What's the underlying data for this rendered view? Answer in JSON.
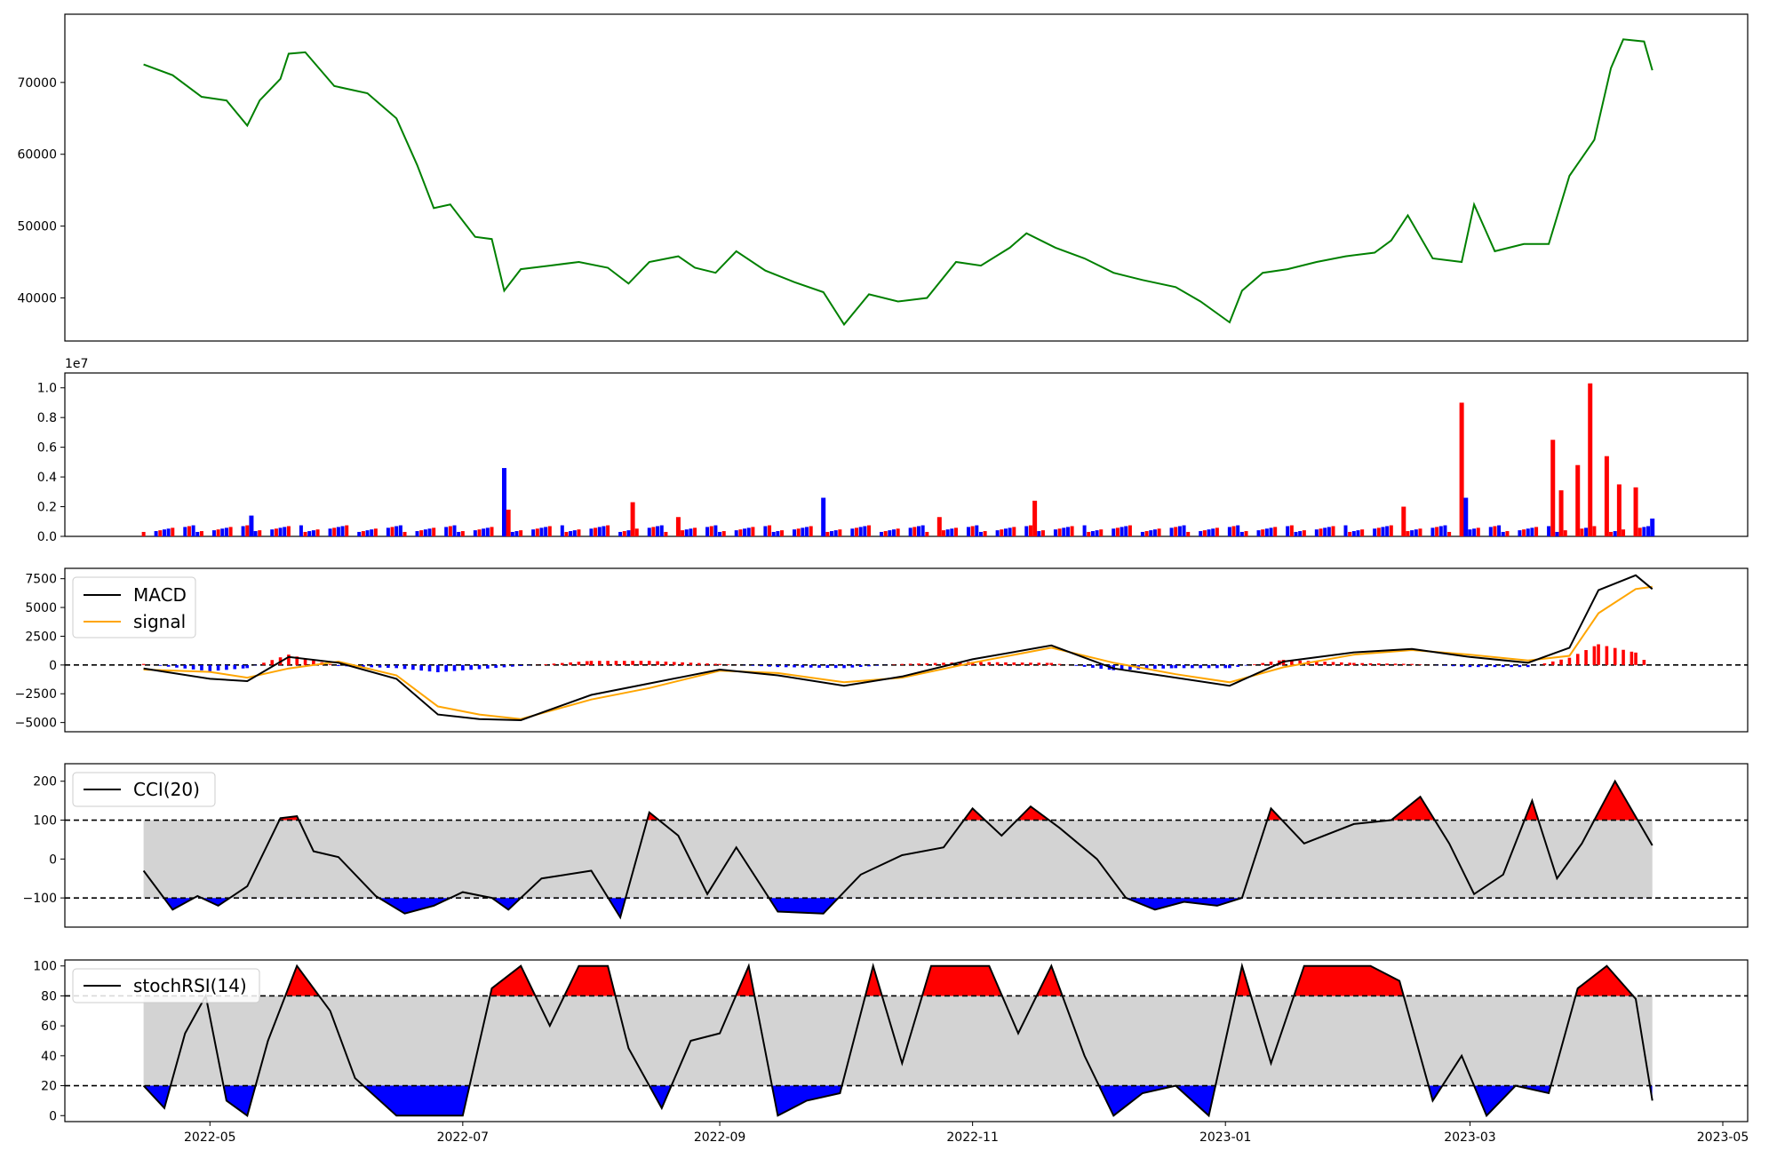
{
  "chart_data": [
    {
      "type": "line",
      "panel": "price",
      "series": [
        {
          "x": [
            "2022-04-15",
            "2022-04-22",
            "2022-04-29",
            "2022-05-05",
            "2022-05-10",
            "2022-05-13",
            "2022-05-18",
            "2022-05-20",
            "2022-05-24",
            "2022-05-31",
            "2022-06-08",
            "2022-06-15",
            "2022-06-20",
            "2022-06-24",
            "2022-06-28",
            "2022-07-04",
            "2022-07-08",
            "2022-07-11",
            "2022-07-15",
            "2022-07-22",
            "2022-07-29",
            "2022-08-05",
            "2022-08-10",
            "2022-08-15",
            "2022-08-22",
            "2022-08-26",
            "2022-08-31",
            "2022-09-05",
            "2022-09-12",
            "2022-09-19",
            "2022-09-26",
            "2022-10-01",
            "2022-10-07",
            "2022-10-14",
            "2022-10-21",
            "2022-10-28",
            "2022-11-03",
            "2022-11-10",
            "2022-11-14",
            "2022-11-21",
            "2022-11-28",
            "2022-12-05",
            "2022-12-12",
            "2022-12-20",
            "2022-12-26",
            "2023-01-02",
            "2023-01-05",
            "2023-01-10",
            "2023-01-16",
            "2023-01-23",
            "2023-01-30",
            "2023-02-06",
            "2023-02-10",
            "2023-02-14",
            "2023-02-20",
            "2023-02-27",
            "2023-03-02",
            "2023-03-07",
            "2023-03-14",
            "2023-03-20",
            "2023-03-25",
            "2023-03-31",
            "2023-04-04",
            "2023-04-07",
            "2023-04-12",
            "2023-04-14"
          ],
          "values": [
            72500,
            71000,
            68000,
            67500,
            64000,
            67500,
            70500,
            74000,
            74200,
            69500,
            68500,
            65000,
            58500,
            52500,
            53000,
            48500,
            48200,
            41000,
            44000,
            44500,
            45000,
            44200,
            42000,
            45000,
            45800,
            44200,
            43500,
            46500,
            43800,
            42200,
            40800,
            36300,
            40500,
            39500,
            40000,
            45000,
            44500,
            47000,
            49000,
            47000,
            45500,
            43500,
            42500,
            41500,
            39500,
            36600,
            41000,
            43500,
            44000,
            45000,
            45800,
            46300,
            48000,
            51500,
            45500,
            45000,
            53000,
            46500,
            47500,
            47500,
            57000,
            62000,
            72000,
            76000,
            75700,
            71700
          ]
        }
      ],
      "ylim": [
        34000,
        79500
      ],
      "yticks": [
        40000,
        50000,
        60000,
        70000
      ],
      "color": "#008000"
    },
    {
      "type": "bar",
      "panel": "volume",
      "offset_label": "1e7",
      "ylim": [
        0,
        1.1
      ],
      "yticks": [
        0.0,
        0.2,
        0.4,
        0.6,
        0.8,
        1.0
      ],
      "up_color": "#ff0000",
      "down_color": "#0000ff",
      "bars": [
        {
          "x": "2022-05-11",
          "value": 0.14,
          "dir": "down"
        },
        {
          "x": "2022-07-11",
          "value": 0.46,
          "dir": "down"
        },
        {
          "x": "2022-07-12",
          "value": 0.18,
          "dir": "up"
        },
        {
          "x": "2022-08-11",
          "value": 0.23,
          "dir": "up"
        },
        {
          "x": "2022-08-22",
          "value": 0.13,
          "dir": "up"
        },
        {
          "x": "2022-09-26",
          "value": 0.26,
          "dir": "down"
        },
        {
          "x": "2022-10-24",
          "value": 0.13,
          "dir": "up"
        },
        {
          "x": "2022-11-16",
          "value": 0.24,
          "dir": "up"
        },
        {
          "x": "2023-02-13",
          "value": 0.2,
          "dir": "up"
        },
        {
          "x": "2023-02-27",
          "value": 0.9,
          "dir": "up"
        },
        {
          "x": "2023-02-28",
          "value": 0.26,
          "dir": "down"
        },
        {
          "x": "2023-03-21",
          "value": 0.65,
          "dir": "up"
        },
        {
          "x": "2023-03-23",
          "value": 0.31,
          "dir": "up"
        },
        {
          "x": "2023-03-27",
          "value": 0.48,
          "dir": "up"
        },
        {
          "x": "2023-03-30",
          "value": 1.03,
          "dir": "up"
        },
        {
          "x": "2023-04-03",
          "value": 0.54,
          "dir": "up"
        },
        {
          "x": "2023-04-06",
          "value": 0.35,
          "dir": "up"
        },
        {
          "x": "2023-04-10",
          "value": 0.33,
          "dir": "up"
        },
        {
          "x": "2023-04-14",
          "value": 0.12,
          "dir": "down"
        }
      ],
      "baseline_note": "remaining days approx 0.03–0.08 (×1e7)"
    },
    {
      "type": "line",
      "panel": "macd",
      "ylim": [
        -5800,
        8400
      ],
      "yticks": [
        -5000,
        -2500,
        0,
        2500,
        5000,
        7500
      ],
      "legend": [
        "MACD",
        "signal"
      ],
      "series": [
        {
          "name": "MACD",
          "color": "#000000",
          "x": [
            "2022-04-15",
            "2022-05-01",
            "2022-05-10",
            "2022-05-20",
            "2022-06-01",
            "2022-06-15",
            "2022-06-25",
            "2022-07-05",
            "2022-07-15",
            "2022-08-01",
            "2022-08-15",
            "2022-09-01",
            "2022-09-15",
            "2022-10-01",
            "2022-10-15",
            "2022-11-01",
            "2022-11-20",
            "2022-12-05",
            "2022-12-20",
            "2023-01-02",
            "2023-01-15",
            "2023-02-01",
            "2023-02-15",
            "2023-03-01",
            "2023-03-15",
            "2023-03-25",
            "2023-04-01",
            "2023-04-10",
            "2023-04-14"
          ],
          "values": [
            -300,
            -1200,
            -1400,
            700,
            200,
            -1200,
            -4300,
            -4700,
            -4800,
            -2600,
            -1600,
            -400,
            -900,
            -1800,
            -1000,
            500,
            1700,
            -300,
            -1100,
            -1800,
            300,
            1100,
            1400,
            700,
            200,
            1500,
            6500,
            7800,
            6600
          ]
        },
        {
          "name": "signal",
          "color": "#ffa500",
          "x": [
            "2022-04-15",
            "2022-05-01",
            "2022-05-10",
            "2022-05-20",
            "2022-06-01",
            "2022-06-15",
            "2022-06-25",
            "2022-07-05",
            "2022-07-15",
            "2022-08-01",
            "2022-08-15",
            "2022-09-01",
            "2022-09-15",
            "2022-10-01",
            "2022-10-15",
            "2022-11-01",
            "2022-11-20",
            "2022-12-05",
            "2022-12-20",
            "2023-01-02",
            "2023-01-15",
            "2023-02-01",
            "2023-02-15",
            "2023-03-01",
            "2023-03-15",
            "2023-03-25",
            "2023-04-01",
            "2023-04-10",
            "2023-04-14"
          ],
          "values": [
            -400,
            -600,
            -1100,
            -300,
            300,
            -900,
            -3600,
            -4300,
            -4700,
            -3000,
            -2000,
            -500,
            -700,
            -1500,
            -1100,
            200,
            1500,
            200,
            -800,
            -1500,
            -200,
            900,
            1300,
            900,
            400,
            800,
            4500,
            6600,
            6800
          ]
        }
      ]
    },
    {
      "type": "line",
      "panel": "cci",
      "ylim": [
        -175,
        245
      ],
      "yticks": [
        -100,
        0,
        100,
        200
      ],
      "legend": [
        "CCI(20)"
      ],
      "thresholds": [
        100,
        -100
      ],
      "series": [
        {
          "name": "CCI(20)",
          "color": "#000000",
          "x": [
            "2022-04-15",
            "2022-04-22",
            "2022-04-28",
            "2022-05-03",
            "2022-05-10",
            "2022-05-18",
            "2022-05-22",
            "2022-05-26",
            "2022-06-01",
            "2022-06-10",
            "2022-06-17",
            "2022-06-24",
            "2022-07-01",
            "2022-07-08",
            "2022-07-12",
            "2022-07-20",
            "2022-08-01",
            "2022-08-08",
            "2022-08-15",
            "2022-08-22",
            "2022-08-29",
            "2022-09-05",
            "2022-09-15",
            "2022-09-26",
            "2022-10-05",
            "2022-10-15",
            "2022-10-25",
            "2022-11-01",
            "2022-11-08",
            "2022-11-15",
            "2022-11-22",
            "2022-12-01",
            "2022-12-08",
            "2022-12-15",
            "2022-12-22",
            "2022-12-30",
            "2023-01-05",
            "2023-01-12",
            "2023-01-20",
            "2023-02-01",
            "2023-02-10",
            "2023-02-17",
            "2023-02-24",
            "2023-03-02",
            "2023-03-09",
            "2023-03-16",
            "2023-03-22",
            "2023-03-28",
            "2023-04-05",
            "2023-04-14"
          ],
          "values": [
            -30,
            -130,
            -95,
            -120,
            -70,
            105,
            110,
            20,
            5,
            -95,
            -140,
            -120,
            -85,
            -100,
            -130,
            -50,
            -30,
            -150,
            120,
            60,
            -90,
            30,
            -135,
            -140,
            -40,
            10,
            30,
            130,
            60,
            135,
            80,
            0,
            -100,
            -130,
            -110,
            -120,
            -100,
            130,
            40,
            90,
            100,
            160,
            40,
            -90,
            -40,
            150,
            -50,
            40,
            200,
            35
          ]
        }
      ]
    },
    {
      "type": "line",
      "panel": "stochrsi",
      "ylim": [
        -4,
        104
      ],
      "yticks": [
        0,
        20,
        40,
        60,
        80,
        100
      ],
      "legend": [
        "stochRSI(14)"
      ],
      "thresholds": [
        80,
        20
      ],
      "series": [
        {
          "name": "stochRSI(14)",
          "color": "#000000",
          "x": [
            "2022-04-15",
            "2022-04-20",
            "2022-04-25",
            "2022-04-30",
            "2022-05-05",
            "2022-05-10",
            "2022-05-15",
            "2022-05-22",
            "2022-05-30",
            "2022-06-05",
            "2022-06-15",
            "2022-06-25",
            "2022-07-01",
            "2022-07-08",
            "2022-07-15",
            "2022-07-22",
            "2022-07-29",
            "2022-08-05",
            "2022-08-10",
            "2022-08-18",
            "2022-08-25",
            "2022-09-01",
            "2022-09-08",
            "2022-09-15",
            "2022-09-22",
            "2022-09-30",
            "2022-10-08",
            "2022-10-15",
            "2022-10-22",
            "2022-10-29",
            "2022-11-05",
            "2022-11-12",
            "2022-11-20",
            "2022-11-28",
            "2022-12-05",
            "2022-12-12",
            "2022-12-20",
            "2022-12-28",
            "2023-01-05",
            "2023-01-12",
            "2023-01-20",
            "2023-01-28",
            "2023-02-05",
            "2023-02-12",
            "2023-02-20",
            "2023-02-27",
            "2023-03-05",
            "2023-03-12",
            "2023-03-20",
            "2023-03-27",
            "2023-04-03",
            "2023-04-10",
            "2023-04-14"
          ],
          "values": [
            20,
            5,
            55,
            80,
            10,
            0,
            50,
            100,
            70,
            25,
            0,
            0,
            0,
            85,
            100,
            60,
            100,
            100,
            45,
            5,
            50,
            55,
            100,
            0,
            10,
            15,
            100,
            35,
            100,
            100,
            100,
            55,
            100,
            40,
            0,
            15,
            20,
            0,
            100,
            35,
            100,
            100,
            100,
            90,
            10,
            40,
            0,
            20,
            15,
            85,
            100,
            78,
            10
          ]
        }
      ]
    },
    {
      "type": "axis",
      "panel": "shared-x",
      "xticks": [
        "2022-05",
        "2022-07",
        "2022-09",
        "2022-11",
        "2023-01",
        "2023-03",
        "2023-05"
      ],
      "xlim": [
        "2022-03-27",
        "2023-05-07"
      ]
    }
  ]
}
